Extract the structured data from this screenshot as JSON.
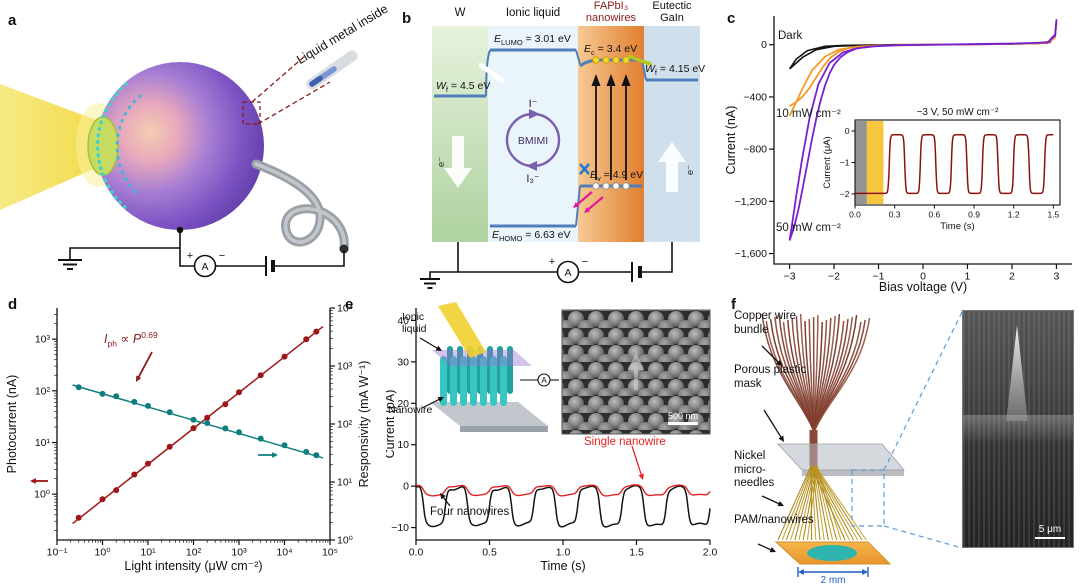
{
  "panels": {
    "a": {
      "label": "a",
      "liquid_metal": "Liquid metal inside",
      "ammeter": "A",
      "plus": "+",
      "minus": "−"
    },
    "b": {
      "label": "b",
      "headers": {
        "w": "W",
        "ionic": "Ionic liquid",
        "fapbi": "FAPbI₃ nanowires",
        "gain": "Eutectic GaIn"
      },
      "levels": {
        "e_lumo": {
          "sym": "E",
          "sub": "LUMO",
          "rest": " = 3.01 eV"
        },
        "wf_w": {
          "sym": "W",
          "sub": "f",
          "rest": " = 4.5 eV"
        },
        "e_c": {
          "sym": "E",
          "sub": "c",
          "rest": " = 3.4 eV"
        },
        "wf_gain": {
          "sym": "W",
          "sub": "f",
          "rest": " = 4.15 eV"
        },
        "e_v": {
          "sym": "E",
          "sub": "v",
          "rest": " = 4.9 eV"
        },
        "e_homo": {
          "sym": "E",
          "sub": "HOMO",
          "rest": " = 6.63 eV"
        }
      },
      "cycle": {
        "name": "BMIMI",
        "top": "I⁻",
        "bottom": "I₃⁻"
      },
      "electron": "e⁻",
      "ammeter": "A",
      "plus": "+",
      "minus": "−"
    },
    "c": {
      "label": "c"
    },
    "d": {
      "label": "d"
    },
    "e": {
      "label": "e",
      "inset": {
        "ionic": "Ionic liquid",
        "nanowire": "Nanowire",
        "scale": "500 nm",
        "ammeter": "A"
      }
    },
    "f": {
      "label": "f",
      "labels": {
        "copper": "Copper wire bundle",
        "mask": "Porous plastic mask",
        "needles": "Nickel micro-needles",
        "pam": "PAM/nanowires"
      },
      "scale_2mm": "2 mm",
      "scale_5um": "5 μm"
    }
  },
  "chart_data": [
    {
      "id": "iv",
      "type": "line",
      "xlabel": "Bias voltage (V)",
      "ylabel": "Current (nA)",
      "xlim": [
        -3.35,
        3.35
      ],
      "ylim": [
        -1680,
        220
      ],
      "xticks": {
        "values": [
          -3,
          -2,
          -1,
          0,
          1,
          2,
          3
        ],
        "labels": [
          "−3",
          "−2",
          "−1",
          "0",
          "1",
          "2",
          "3"
        ]
      },
      "yticks": {
        "values": [
          0,
          -400,
          -800,
          -1200,
          -1600
        ],
        "labels": [
          "0",
          "−400",
          "−800",
          "−1,200",
          "−1,600"
        ]
      },
      "series": [
        {
          "name": "Dark",
          "color": "#141414",
          "points": [
            [
              -3,
              -185
            ],
            [
              -2.7,
              -95
            ],
            [
              -2.4,
              -38
            ],
            [
              -2,
              -12
            ],
            [
              -1.5,
              -5
            ],
            [
              -1,
              -3
            ],
            [
              0,
              -1
            ],
            [
              1,
              2
            ],
            [
              2,
              5
            ],
            [
              2.6,
              9
            ],
            [
              2.85,
              18
            ],
            [
              2.97,
              70
            ],
            [
              3,
              160
            ],
            [
              2.97,
              60
            ],
            [
              2.85,
              22
            ],
            [
              2.5,
              10
            ],
            [
              1.5,
              5
            ],
            [
              0.5,
              2
            ],
            [
              -0.5,
              0
            ],
            [
              -1.2,
              -2
            ],
            [
              -1.8,
              -5
            ],
            [
              -2.2,
              -12
            ],
            [
              -2.6,
              -45
            ],
            [
              -2.85,
              -110
            ],
            [
              -3,
              -185
            ]
          ]
        },
        {
          "name": "10 mW cm⁻²",
          "color": "#f59a23",
          "points": [
            [
              -3,
              -470
            ],
            [
              -2.85,
              -440
            ],
            [
              -2.7,
              -395
            ],
            [
              -2.55,
              -330
            ],
            [
              -2.4,
              -250
            ],
            [
              -2.25,
              -170
            ],
            [
              -2.1,
              -105
            ],
            [
              -1.9,
              -55
            ],
            [
              -1.7,
              -28
            ],
            [
              -1.4,
              -13
            ],
            [
              -1,
              -6
            ],
            [
              -0.5,
              -3
            ],
            [
              0,
              -1
            ],
            [
              1,
              2
            ],
            [
              2,
              6
            ],
            [
              2.8,
              12
            ],
            [
              2.97,
              60
            ],
            [
              3,
              170
            ],
            [
              2.97,
              55
            ],
            [
              2.8,
              14
            ],
            [
              2,
              6
            ],
            [
              1,
              2
            ],
            [
              0,
              -1
            ],
            [
              -0.6,
              -4
            ],
            [
              -1.1,
              -8
            ],
            [
              -1.5,
              -16
            ],
            [
              -1.9,
              -38
            ],
            [
              -2.2,
              -90
            ],
            [
              -2.5,
              -200
            ],
            [
              -2.7,
              -330
            ],
            [
              -2.85,
              -440
            ],
            [
              -2.95,
              -510
            ],
            [
              -3,
              -545
            ]
          ]
        },
        {
          "name": "50 mW cm⁻²",
          "color": "#7a1fd0",
          "points": [
            [
              -3,
              -1500
            ],
            [
              -2.9,
              -1400
            ],
            [
              -2.8,
              -1260
            ],
            [
              -2.7,
              -1090
            ],
            [
              -2.6,
              -910
            ],
            [
              -2.5,
              -730
            ],
            [
              -2.4,
              -565
            ],
            [
              -2.3,
              -425
            ],
            [
              -2.2,
              -310
            ],
            [
              -2.1,
              -220
            ],
            [
              -2,
              -155
            ],
            [
              -1.85,
              -95
            ],
            [
              -1.7,
              -58
            ],
            [
              -1.5,
              -30
            ],
            [
              -1.2,
              -14
            ],
            [
              -0.8,
              -6
            ],
            [
              -0.3,
              -2
            ],
            [
              0.3,
              1
            ],
            [
              1,
              4
            ],
            [
              2,
              9
            ],
            [
              2.8,
              16
            ],
            [
              2.97,
              80
            ],
            [
              3,
              190
            ],
            [
              2.97,
              70
            ],
            [
              2.8,
              18
            ],
            [
              2,
              8
            ],
            [
              1,
              3
            ],
            [
              0,
              -1
            ],
            [
              -0.6,
              -5
            ],
            [
              -1.1,
              -12
            ],
            [
              -1.5,
              -28
            ],
            [
              -1.8,
              -60
            ],
            [
              -2.1,
              -140
            ],
            [
              -2.35,
              -300
            ],
            [
              -2.55,
              -560
            ],
            [
              -2.72,
              -880
            ],
            [
              -2.85,
              -1160
            ],
            [
              -2.95,
              -1390
            ],
            [
              -3,
              -1500
            ]
          ]
        }
      ],
      "inset": {
        "annotation": "−3 V, 50 mW cm⁻²",
        "xlabel": "Time (s)",
        "ylabel": "Current (μA)",
        "xlim": [
          0,
          1.55
        ],
        "ylim": [
          -2.35,
          0.35
        ],
        "xticks": {
          "values": [
            0,
            0.3,
            0.6,
            0.9,
            1.2,
            1.5
          ],
          "labels": [
            "0.0",
            "0.3",
            "0.6",
            "0.9",
            "1.2",
            "1.5"
          ]
        },
        "yticks": {
          "values": [
            0,
            -1,
            -2
          ],
          "labels": [
            "0",
            "−1",
            "−2"
          ]
        },
        "wave": {
          "t_start": 0.2,
          "period": 0.235,
          "high": -0.12,
          "low": -1.98,
          "sharpness": 5,
          "color": "#8b1111"
        },
        "shade": [
          {
            "x0": 0,
            "x1": 0.09,
            "color": "#8f8f8f",
            "opacity": 0.95
          },
          {
            "x0": 0.09,
            "x1": 0.215,
            "color": "#f5c431",
            "opacity": 0.95
          }
        ]
      }
    },
    {
      "id": "power",
      "type": "scatter",
      "xscale": "log",
      "yscale": "log",
      "xlabel": "Light intensity (μW cm⁻²)",
      "ylabel_left": "Photocurrent (nA)",
      "ylabel_right": "Responsivity (mA W⁻¹)",
      "xlim": [
        0.1,
        100000
      ],
      "ylim_left": [
        0.13,
        4000
      ],
      "ylim_right": [
        1,
        10000
      ],
      "xticks": {
        "values": [
          0.1,
          1,
          10,
          100,
          1000,
          10000,
          100000
        ],
        "labels": [
          "10⁻¹",
          "10⁰",
          "10¹",
          "10²",
          "10³",
          "10⁴",
          "10⁵"
        ]
      },
      "yticks_left": {
        "values": [
          1,
          10,
          100,
          1000
        ],
        "labels": [
          "10⁰",
          "10¹",
          "10²",
          "10³"
        ]
      },
      "yticks_right": {
        "values": [
          1,
          10,
          100,
          1000,
          10000
        ],
        "labels": [
          "10⁰",
          "10¹",
          "10²",
          "10³",
          "10⁴"
        ]
      },
      "annotation": {
        "lhs": "I",
        "lhs_sub": "ph",
        "mid": " ∝ ",
        "rhs": "P",
        "exp": "0.69"
      },
      "series": [
        {
          "name": "Photocurrent",
          "axis": "left",
          "color": "#9e1616",
          "points": [
            [
              0.3,
              0.35
            ],
            [
              1,
              0.8
            ],
            [
              2,
              1.2
            ],
            [
              5,
              2.4
            ],
            [
              10,
              3.9
            ],
            [
              30,
              8.3
            ],
            [
              100,
              19
            ],
            [
              200,
              30
            ],
            [
              500,
              55
            ],
            [
              1000,
              94
            ],
            [
              3000,
              200
            ],
            [
              10000,
              460
            ],
            [
              30000,
              990
            ],
            [
              50000,
              1400
            ]
          ],
          "fit": [
            [
              0.22,
              0.27
            ],
            [
              70000,
              1750
            ]
          ]
        },
        {
          "name": "Responsivity",
          "axis": "right",
          "color": "#0d7d7d",
          "points": [
            [
              0.3,
              430
            ],
            [
              1,
              330
            ],
            [
              2,
              300
            ],
            [
              5,
              240
            ],
            [
              10,
              205
            ],
            [
              30,
              160
            ],
            [
              100,
              118
            ],
            [
              200,
              104
            ],
            [
              500,
              84
            ],
            [
              1000,
              72
            ],
            [
              3000,
              56
            ],
            [
              10000,
              43
            ],
            [
              30000,
              33
            ],
            [
              50000,
              29
            ]
          ],
          "fit": [
            [
              0.22,
              470
            ],
            [
              70000,
              26
            ]
          ]
        }
      ]
    },
    {
      "id": "traces",
      "type": "line",
      "xlabel": "Time (s)",
      "ylabel": "Current (pA)",
      "xlim": [
        0,
        2
      ],
      "ylim": [
        -13,
        43
      ],
      "xticks": {
        "values": [
          0,
          0.5,
          1,
          1.5,
          2
        ],
        "labels": [
          "0.0",
          "0.5",
          "1.0",
          "1.5",
          "2.0"
        ]
      },
      "yticks": {
        "values": [
          -10,
          0,
          10,
          20,
          30,
          40
        ],
        "labels": [
          "−10",
          "0",
          "10",
          "20",
          "30",
          "40"
        ]
      },
      "series": [
        {
          "name": "Four nanowires",
          "color": "#141414",
          "wave": {
            "period": 0.3,
            "phase": 0.1,
            "high": -0.4,
            "low": -9.4,
            "sharpness": 3.2,
            "wiggle": 0.35
          }
        },
        {
          "name": "Single nanowire",
          "color": "#e02424",
          "wave": {
            "period": 0.3,
            "phase": 0.1,
            "high": 0.1,
            "low": -2.2,
            "sharpness": 2.4,
            "wiggle": 0.15
          }
        }
      ]
    }
  ]
}
